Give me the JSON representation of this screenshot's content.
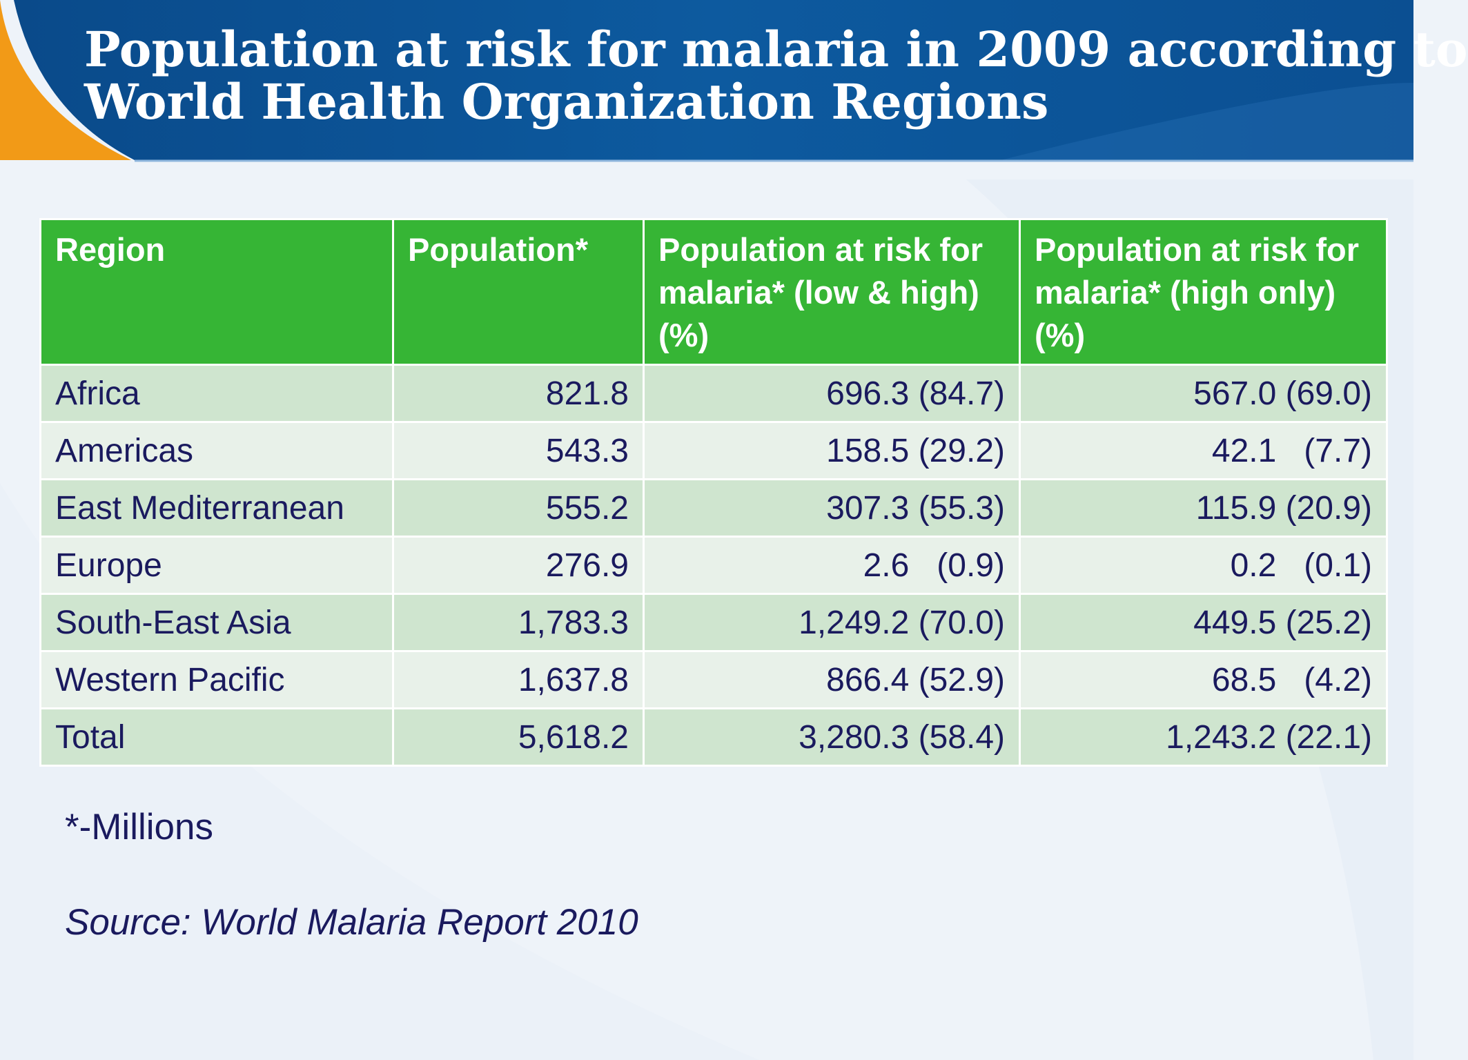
{
  "title_lines": [
    "Population at risk for malaria in 2009 according to",
    "World Health Organization Regions"
  ],
  "table": {
    "headers": [
      "Region",
      "Population*",
      "Population at risk for malaria* (low & high) (%)",
      "Population at risk for malaria* (high only) (%)"
    ],
    "rows": [
      [
        "Africa",
        "821.8",
        "696.3 (84.7)",
        "567.0 (69.0)"
      ],
      [
        "Americas",
        "543.3",
        "158.5 (29.2)",
        "42.1   (7.7)"
      ],
      [
        "East Mediterranean",
        "555.2",
        "307.3 (55.3)",
        "115.9 (20.9)"
      ],
      [
        "Europe",
        "276.9",
        "2.6   (0.9)",
        "0.2   (0.1)"
      ],
      [
        "South-East Asia",
        "1,783.3",
        "1,249.2 (70.0)",
        "449.5 (25.2)"
      ],
      [
        "Western Pacific",
        "1,637.8",
        "866.4 (52.9)",
        "68.5   (4.2)"
      ],
      [
        "Total",
        "5,618.2",
        "3,280.3 (58.4)",
        "1,243.2 (22.1)"
      ]
    ]
  },
  "footnote": "*-Millions",
  "source": "Source: World Malaria Report 2010",
  "colors": {
    "header_band": "#0b4f92",
    "accent_orange": "#f29a17",
    "table_header": "#36b535",
    "row_odd": "#cfe5cf",
    "row_even": "#e8f1e9",
    "text": "#1a1a5e"
  }
}
